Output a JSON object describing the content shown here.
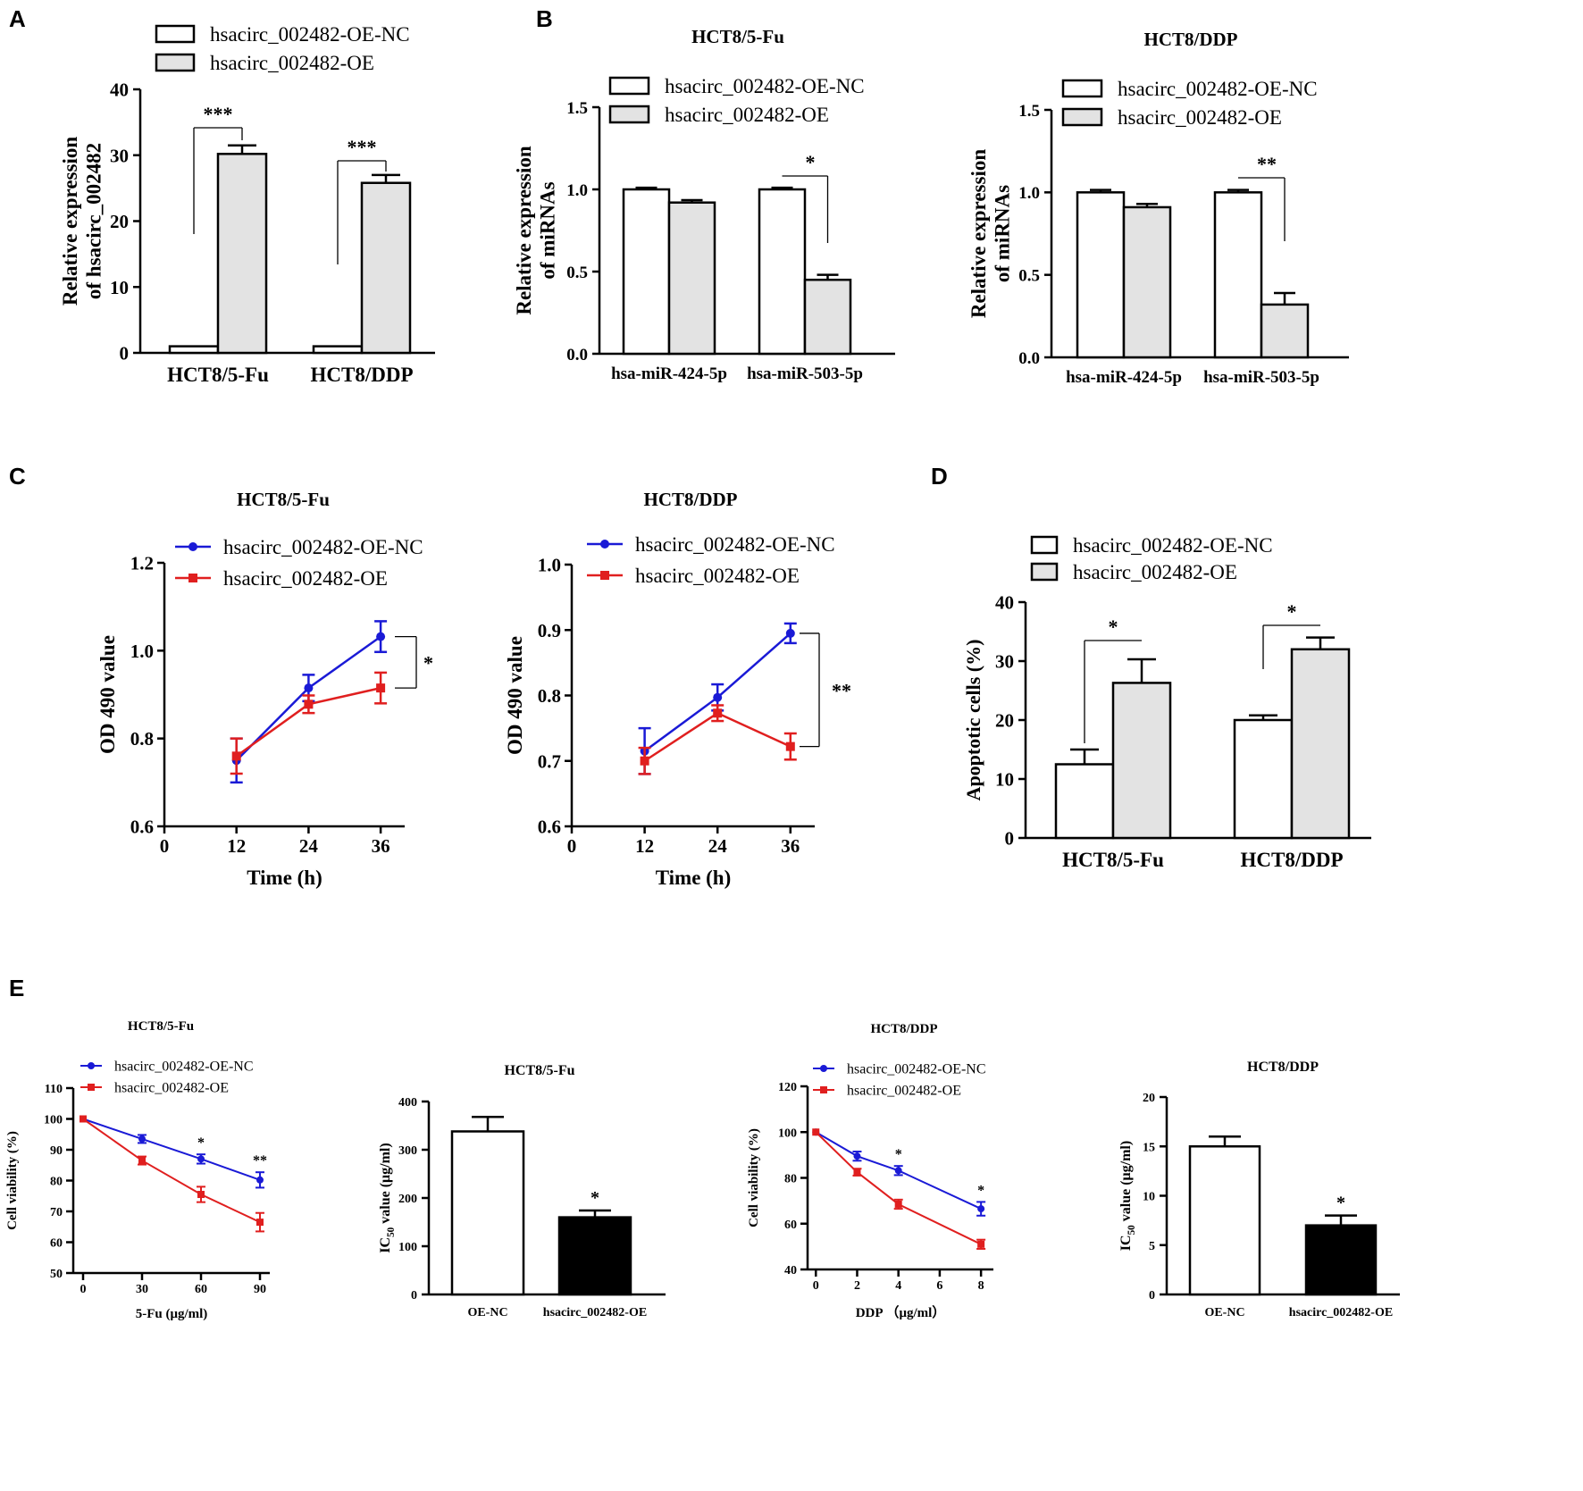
{
  "chart_data": [
    {
      "id": "A",
      "panel_label": "A",
      "type": "bar",
      "title": "",
      "categories": [
        "HCT8/5-Fu",
        "HCT8/DDP"
      ],
      "series": [
        {
          "name": "hsacirc_002482-OE-NC",
          "values": [
            1.0,
            1.0
          ],
          "errors": [
            0,
            0
          ]
        },
        {
          "name": "hsacirc_002482-OE",
          "values": [
            30.2,
            25.8
          ],
          "errors": [
            1.3,
            1.2
          ]
        }
      ],
      "ylabel": "Relative expression of hsacirc_002482",
      "ylim": [
        0,
        40
      ],
      "yticks": [
        0,
        10,
        20,
        30,
        40
      ],
      "significance": [
        "***",
        "***"
      ]
    },
    {
      "id": "B1",
      "panel_label": "B",
      "type": "bar",
      "title": "HCT8/5-Fu",
      "categories": [
        "hsa-miR-424-5p",
        "hsa-miR-503-5p"
      ],
      "series": [
        {
          "name": "hsacirc_002482-OE-NC",
          "values": [
            1.0,
            1.0
          ],
          "errors": [
            0.01,
            0.01
          ]
        },
        {
          "name": "hsacirc_002482-OE",
          "values": [
            0.92,
            0.45
          ],
          "errors": [
            0.015,
            0.03
          ]
        }
      ],
      "ylabel": "Relative expression of miRNAs",
      "ylim": [
        0,
        1.5
      ],
      "yticks": [
        "0.0",
        "0.5",
        "1.0",
        "1.5"
      ],
      "significance": [
        "",
        "*"
      ]
    },
    {
      "id": "B2",
      "panel_label": "",
      "type": "bar",
      "title": "HCT8/DDP",
      "categories": [
        "hsa-miR-424-5p",
        "hsa-miR-503-5p"
      ],
      "series": [
        {
          "name": "hsacirc_002482-OE-NC",
          "values": [
            1.0,
            1.0
          ],
          "errors": [
            0.015,
            0.015
          ]
        },
        {
          "name": "hsacirc_002482-OE",
          "values": [
            0.91,
            0.32
          ],
          "errors": [
            0.02,
            0.07
          ]
        }
      ],
      "ylabel": "Relative expression of miRNAs",
      "ylim": [
        0,
        1.5
      ],
      "yticks": [
        "0.0",
        "0.5",
        "1.0",
        "1.5"
      ],
      "significance": [
        "",
        "**"
      ]
    },
    {
      "id": "C1",
      "panel_label": "C",
      "type": "line",
      "title": "HCT8/5-Fu",
      "x": [
        12,
        24,
        36
      ],
      "series": [
        {
          "name": "hsacirc_002482-OE-NC",
          "values": [
            0.75,
            0.915,
            1.032
          ],
          "errors": [
            0.05,
            0.03,
            0.035
          ],
          "color": "#1a1ad6"
        },
        {
          "name": "hsacirc_002482-OE",
          "values": [
            0.76,
            0.878,
            0.915
          ],
          "errors": [
            0.04,
            0.02,
            0.035
          ],
          "color": "#e01f1f"
        }
      ],
      "xlabel": "Time (h)",
      "ylabel": "OD 490 value",
      "xlim": [
        0,
        40
      ],
      "xticks": [
        0,
        12,
        24,
        36
      ],
      "ylim": [
        0.6,
        1.2
      ],
      "yticks": [
        "0.6",
        "0.8",
        "1.0",
        "1.2"
      ],
      "significance": "*"
    },
    {
      "id": "C2",
      "panel_label": "",
      "type": "line",
      "title": "HCT8/DDP",
      "x": [
        12,
        24,
        36
      ],
      "series": [
        {
          "name": "hsacirc_002482-OE-NC",
          "values": [
            0.715,
            0.797,
            0.895
          ],
          "errors": [
            0.035,
            0.02,
            0.015
          ],
          "color": "#1a1ad6"
        },
        {
          "name": "hsacirc_002482-OE",
          "values": [
            0.7,
            0.773,
            0.722
          ],
          "errors": [
            0.02,
            0.012,
            0.02
          ],
          "color": "#e01f1f"
        }
      ],
      "xlabel": "Time (h)",
      "ylabel": "OD 490 value",
      "xlim": [
        0,
        40
      ],
      "xticks": [
        0,
        12,
        24,
        36
      ],
      "ylim": [
        0.6,
        1.0
      ],
      "yticks": [
        "0.6",
        "0.7",
        "0.8",
        "0.9",
        "1.0"
      ],
      "significance": "**"
    },
    {
      "id": "D",
      "panel_label": "D",
      "type": "bar",
      "title": "",
      "categories": [
        "HCT8/5-Fu",
        "HCT8/DDP"
      ],
      "series": [
        {
          "name": "hsacirc_002482-OE-NC",
          "values": [
            12.5,
            20.0
          ],
          "errors": [
            2.5,
            0.8
          ]
        },
        {
          "name": "hsacirc_002482-OE",
          "values": [
            26.3,
            32.0
          ],
          "errors": [
            4.0,
            2.0
          ]
        }
      ],
      "ylabel": "Apoptotic cells (%)",
      "ylim": [
        0,
        40
      ],
      "yticks": [
        0,
        10,
        20,
        30,
        40
      ],
      "significance": [
        "*",
        "*"
      ]
    },
    {
      "id": "E1",
      "panel_label": "E",
      "type": "line",
      "title": "HCT8/5-Fu",
      "x": [
        0,
        30,
        60,
        90
      ],
      "series": [
        {
          "name": "hsacirc_002482-OE-NC",
          "values": [
            100,
            93.5,
            87.0,
            80.2
          ],
          "errors": [
            0,
            1.3,
            1.5,
            2.5
          ],
          "color": "#1a1ad6"
        },
        {
          "name": "hsacirc_002482-OE",
          "values": [
            100,
            86.5,
            75.5,
            66.5
          ],
          "errors": [
            0,
            1.3,
            2.5,
            3.0
          ],
          "color": "#e01f1f"
        }
      ],
      "xlabel": "5-Fu (μg/ml)",
      "ylabel": "Cell viability (%)",
      "xlim": [
        -5,
        95
      ],
      "xticks": [
        0,
        30,
        60,
        90
      ],
      "ylim": [
        50,
        110
      ],
      "yticks": [
        50,
        60,
        70,
        80,
        90,
        100,
        110
      ],
      "point_significance": [
        "",
        "",
        "*",
        "**"
      ]
    },
    {
      "id": "E2",
      "panel_label": "",
      "type": "bar",
      "title": "HCT8/5-Fu",
      "categories": [
        "OE-NC",
        "hsacirc_002482-OE"
      ],
      "values": [
        338,
        160
      ],
      "errors": [
        30,
        14
      ],
      "colors": [
        "#ffffff",
        "#000000"
      ],
      "ylabel_prefix": "IC",
      "ylabel_sub": "50",
      "ylabel_suffix": " value (μg/ml)",
      "ylim": [
        0,
        400
      ],
      "yticks": [
        0,
        100,
        200,
        300,
        400
      ],
      "significance": [
        "",
        "*"
      ]
    },
    {
      "id": "E3",
      "panel_label": "",
      "type": "line",
      "title": "HCT8/DDP",
      "x": [
        0,
        2,
        4,
        8
      ],
      "series": [
        {
          "name": "hsacirc_002482-OE-NC",
          "values": [
            100,
            89.5,
            83.2,
            66.5
          ],
          "errors": [
            0,
            2,
            2,
            3
          ],
          "color": "#1a1ad6"
        },
        {
          "name": "hsacirc_002482-OE",
          "values": [
            100,
            82.5,
            68.5,
            51.0
          ],
          "errors": [
            0,
            1.5,
            2,
            2
          ],
          "color": "#e01f1f"
        }
      ],
      "xlabel": "DDP （μg/ml）",
      "ylabel": "Cell viability (%)",
      "xlim": [
        -0.4,
        8.6
      ],
      "xticks": [
        0,
        2,
        4,
        6,
        8
      ],
      "ylim": [
        40,
        120
      ],
      "yticks": [
        40,
        60,
        80,
        100,
        120
      ],
      "point_significance": [
        "",
        "",
        "*",
        "*"
      ]
    },
    {
      "id": "E4",
      "panel_label": "",
      "type": "bar",
      "title": "HCT8/DDP",
      "categories": [
        "OE-NC",
        "hsacirc_002482-OE"
      ],
      "values": [
        15.0,
        7.0
      ],
      "errors": [
        1.0,
        1.0
      ],
      "colors": [
        "#ffffff",
        "#000000"
      ],
      "ylabel_prefix": "IC",
      "ylabel_sub": "50",
      "ylabel_suffix": " value (μg/ml)",
      "ylim": [
        0,
        20
      ],
      "yticks": [
        0,
        5,
        10,
        15,
        20
      ],
      "significance": [
        "",
        "*"
      ]
    }
  ]
}
